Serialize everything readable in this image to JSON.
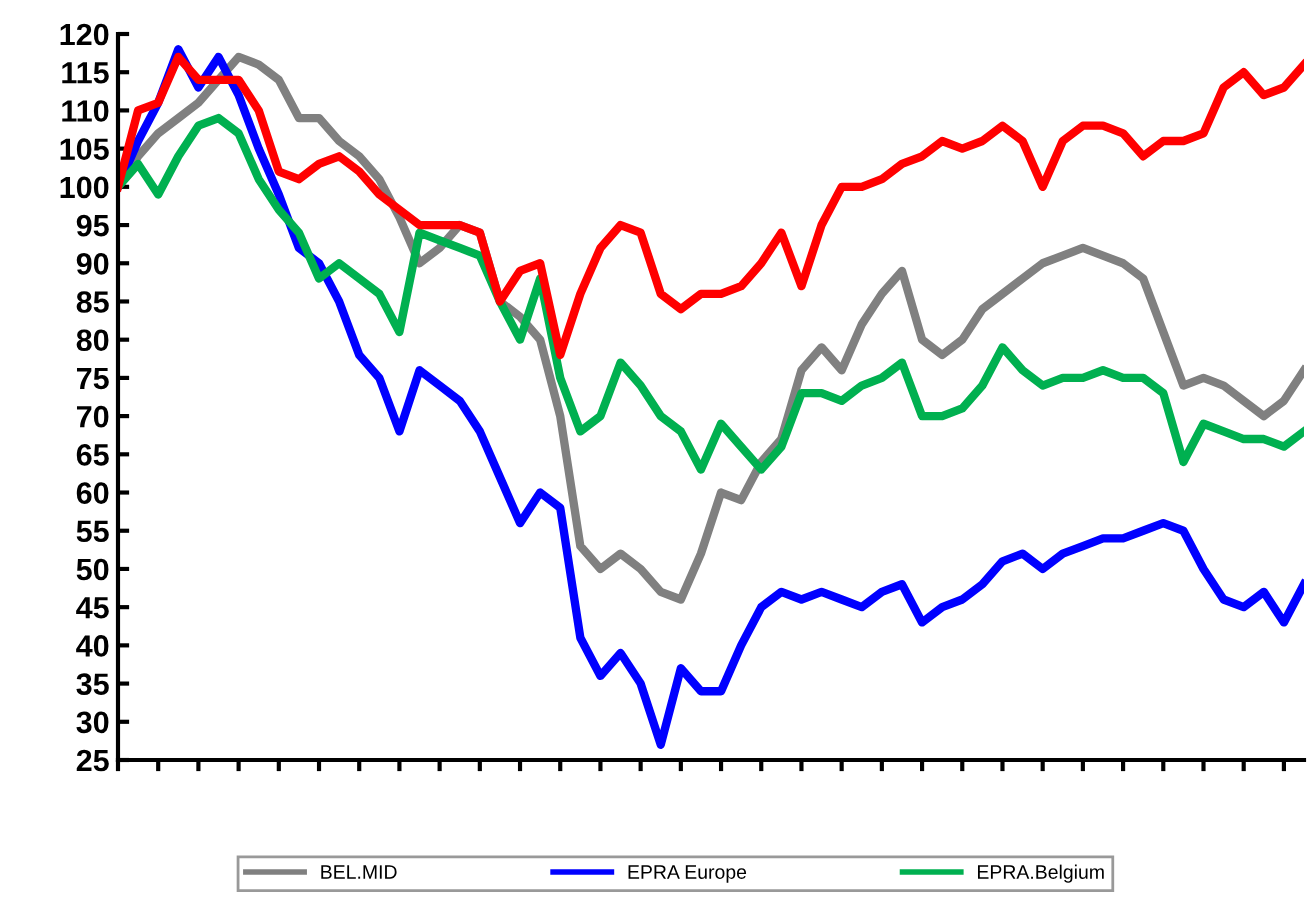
{
  "chart_data": {
    "type": "line",
    "categories": [
      null,
      null,
      null,
      null,
      null,
      null,
      null,
      null,
      null,
      null,
      null,
      null,
      null,
      null,
      null,
      null,
      null,
      null,
      null,
      null,
      null,
      null,
      null,
      null,
      null,
      null,
      null,
      null,
      null,
      null,
      null,
      null,
      null,
      null,
      null,
      null,
      null,
      null,
      null,
      null,
      null,
      null,
      null,
      null,
      null,
      null,
      null,
      null,
      null,
      null,
      null,
      null,
      null,
      null,
      null,
      null,
      null,
      null,
      null,
      null
    ],
    "series": [
      {
        "name": "BEL.MID",
        "color": "#808080",
        "values": [
          100,
          104,
          107,
          109,
          111,
          114,
          117,
          116,
          114,
          109,
          109,
          106,
          104,
          101,
          96,
          90,
          92,
          95,
          94,
          85,
          83,
          80,
          70,
          53,
          50,
          52,
          50,
          47,
          46,
          52,
          60,
          59,
          64,
          67,
          76,
          79,
          76,
          82,
          86,
          89,
          80,
          78,
          80,
          84,
          86,
          88,
          90,
          91,
          92,
          91,
          90,
          88,
          81,
          74,
          75,
          74,
          72,
          70,
          72,
          76
        ]
      },
      {
        "name": "EPRA Europe",
        "color": "#0000ff",
        "values": [
          100,
          106,
          111,
          118,
          113,
          117,
          112,
          105,
          99,
          92,
          90,
          85,
          78,
          75,
          68,
          76,
          74,
          72,
          68,
          62,
          56,
          60,
          58,
          41,
          36,
          39,
          35,
          27,
          37,
          34,
          34,
          40,
          45,
          47,
          46,
          47,
          46,
          45,
          47,
          48,
          43,
          45,
          46,
          48,
          51,
          52,
          50,
          52,
          53,
          54,
          54,
          55,
          56,
          55,
          50,
          46,
          45,
          47,
          43,
          48
        ]
      },
      {
        "name": "EPRA.Belgium",
        "color": "#00b050",
        "values": [
          100,
          103,
          99,
          104,
          108,
          109,
          107,
          101,
          97,
          94,
          88,
          90,
          88,
          86,
          81,
          94,
          93,
          92,
          91,
          85,
          80,
          88,
          75,
          68,
          70,
          77,
          74,
          70,
          68,
          63,
          69,
          66,
          63,
          66,
          73,
          73,
          72,
          74,
          75,
          77,
          70,
          70,
          71,
          74,
          79,
          76,
          74,
          75,
          75,
          76,
          75,
          75,
          73,
          64,
          69,
          68,
          67,
          67,
          66,
          68
        ]
      },
      {
        "color": "#ff0000",
        "values": [
          100,
          110,
          111,
          117,
          114,
          114,
          114,
          110,
          102,
          101,
          103,
          104,
          102,
          99,
          97,
          95,
          95,
          95,
          94,
          85,
          89,
          90,
          78,
          86,
          92,
          95,
          94,
          86,
          84,
          86,
          86,
          87,
          90,
          94,
          87,
          95,
          100,
          100,
          101,
          103,
          104,
          106,
          105,
          106,
          108,
          106,
          100,
          106,
          108,
          108,
          107,
          104,
          106,
          106,
          107,
          113,
          115,
          112,
          113,
          116
        ]
      }
    ],
    "ylim": [
      25,
      120
    ],
    "yticks": [
      25,
      30,
      35,
      40,
      45,
      50,
      55,
      60,
      65,
      70,
      75,
      80,
      85,
      90,
      95,
      100,
      105,
      110,
      115,
      120
    ],
    "grid": false,
    "legend": "bottom",
    "marker": "none",
    "line_style": "solid"
  }
}
